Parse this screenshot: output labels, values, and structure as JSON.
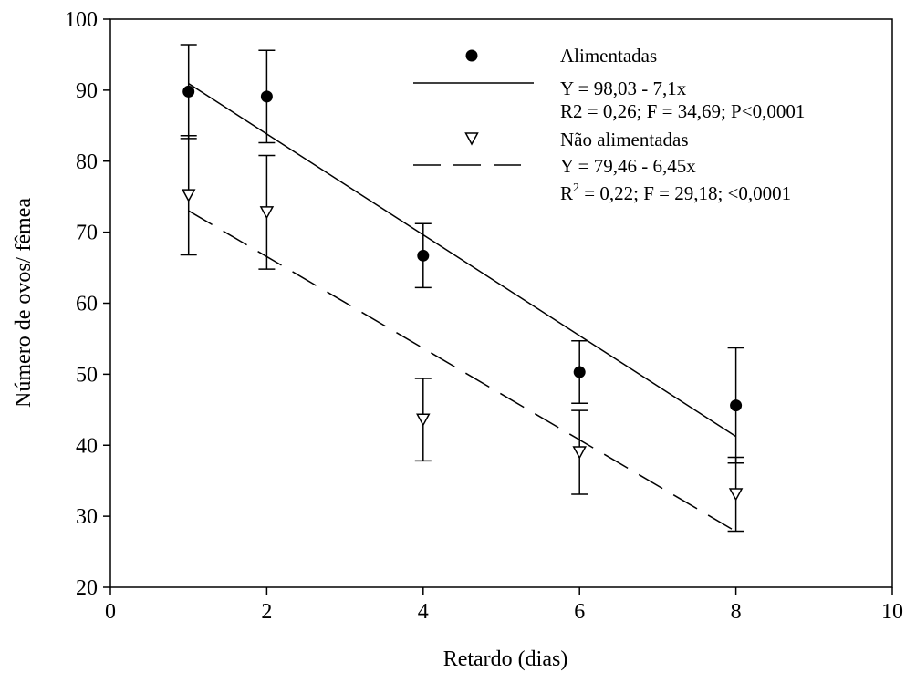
{
  "chart_data": {
    "type": "scatter",
    "title": "",
    "xlabel": "Retardo (dias)",
    "ylabel": "Número de ovos/ fêmea",
    "xlim": [
      0,
      10
    ],
    "ylim": [
      20,
      100
    ],
    "xticks": [
      0,
      2,
      4,
      6,
      8,
      10
    ],
    "yticks": [
      20,
      30,
      40,
      50,
      60,
      70,
      80,
      90,
      100
    ],
    "grid": false,
    "legend_position": "top-right",
    "series": [
      {
        "name": "Alimentadas",
        "marker": "filled-circle",
        "color": "#000000",
        "x": [
          1,
          2,
          4,
          6,
          8
        ],
        "y": [
          89.8,
          89.1,
          66.7,
          50.3,
          45.6
        ],
        "error": [
          6.6,
          6.5,
          4.5,
          4.4,
          8.1
        ],
        "fit": {
          "intercept": 98.03,
          "slope": -7.1,
          "style": "solid",
          "equation": "Y = 98,03 - 7,1x",
          "stats": "R2 = 0,26; F = 34,69; P<0,0001"
        }
      },
      {
        "name": "Não alimentadas",
        "marker": "open-triangle-down",
        "color": "#000000",
        "x": [
          1,
          2,
          4,
          6,
          8
        ],
        "y": [
          75.2,
          72.8,
          43.6,
          39.0,
          33.1
        ],
        "error": [
          8.4,
          8.0,
          5.8,
          5.9,
          5.2
        ],
        "fit": {
          "intercept": 79.46,
          "slope": -6.45,
          "style": "dashed",
          "equation": "Y = 79,46 - 6,45x",
          "stats_prefix": "R",
          "stats_sup": "2",
          "stats_suffix": " = 0,22; F = 29,18;  <0,0001"
        }
      }
    ]
  }
}
